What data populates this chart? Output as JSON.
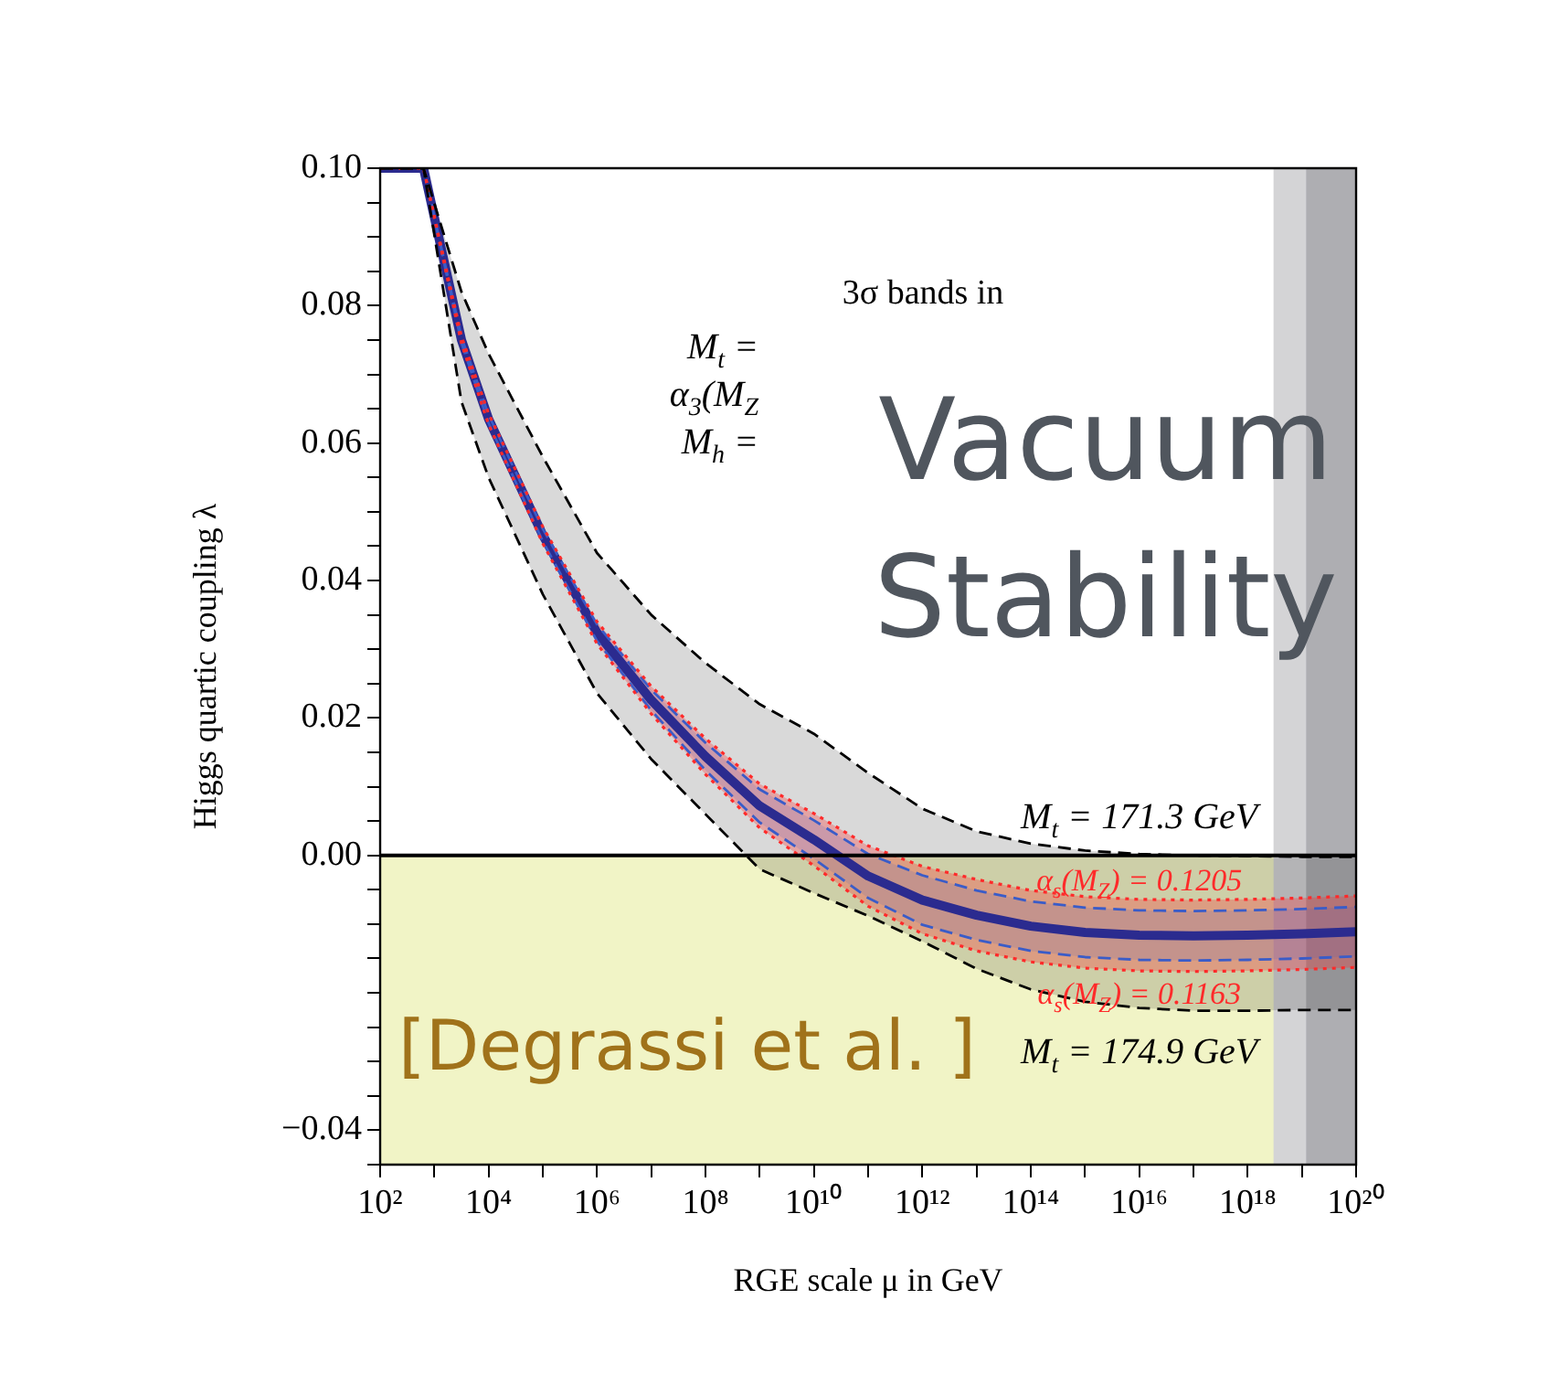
{
  "chart_data": {
    "type": "line",
    "xlabel": "RGE scale μ in GeV",
    "ylabel": "Higgs quartic coupling λ",
    "x": [
      100,
      631,
      3162,
      10000.0,
      100000.0,
      1000000.0,
      10000000.0,
      100000000.0,
      1000000000.0,
      10000000000.0,
      100000000000.0,
      1000000000000.0,
      10000000000000.0,
      100000000000000.0,
      1000000000000000.0,
      1e+16,
      1e+17,
      1e+18,
      1e+19,
      1e+20
    ],
    "series": [
      {
        "name": "M$_{t}$ = 171.3 GeV",
        "color": "#000000",
        "line_style": "dashed",
        "values": [
          0.1,
          0.1,
          0.082,
          0.073,
          0.058,
          0.044,
          0.035,
          0.028,
          0.022,
          0.0177,
          0.012,
          0.0068,
          0.0035,
          0.0017,
          0.0007,
          0.0002,
          0.0,
          -0.0001,
          -0.0002,
          -0.0002
        ]
      },
      {
        "name": "M$_{t}$ = 174.9 GeV",
        "color": "#000000",
        "line_style": "dashed",
        "values": [
          0.1,
          0.1,
          0.066,
          0.055,
          0.038,
          0.0236,
          0.014,
          0.006,
          -0.002,
          -0.0055,
          -0.0088,
          -0.0125,
          -0.0165,
          -0.0195,
          -0.0213,
          -0.0222,
          -0.0226,
          -0.0226,
          -0.0225,
          -0.0225
        ]
      },
      {
        "name": "α$_{s}$(M$_{Z}$) = 0.1205",
        "color": "#ff2a2a",
        "line_style": "dotted",
        "values": [
          0.1,
          0.1,
          0.0755,
          0.0643,
          0.0478,
          0.034,
          0.0246,
          0.017,
          0.0104,
          0.0061,
          0.0014,
          -0.0016,
          -0.0035,
          -0.0051,
          -0.006,
          -0.0064,
          -0.0065,
          -0.0064,
          -0.0062,
          -0.0059
        ]
      },
      {
        "name": "α$_{s}$(M$_{Z}$) = 0.1163",
        "color": "#ff2a2a",
        "line_style": "dotted",
        "values": [
          0.1,
          0.1,
          0.0745,
          0.0627,
          0.0454,
          0.0308,
          0.0206,
          0.0118,
          0.004,
          -0.0015,
          -0.0074,
          -0.0114,
          -0.0139,
          -0.0155,
          -0.0164,
          -0.0168,
          -0.0169,
          -0.0168,
          -0.0166,
          -0.0163
        ]
      },
      {
        "color": "#3a5cc8",
        "line_style": "dashed",
        "values": [
          0.1,
          0.1,
          0.0754,
          0.0641,
          0.0475,
          0.0336,
          0.0241,
          0.0164,
          0.0096,
          0.0051,
          0.0002,
          -0.0029,
          -0.0051,
          -0.0067,
          -0.0076,
          -0.008,
          -0.0081,
          -0.008,
          -0.0078,
          -0.0075
        ]
      },
      {
        "color": "#3a5cc8",
        "line_style": "dashed",
        "values": [
          0.1,
          0.1,
          0.0746,
          0.0629,
          0.0457,
          0.0312,
          0.0211,
          0.0124,
          0.0048,
          -0.0005,
          -0.0062,
          -0.0101,
          -0.0123,
          -0.0139,
          -0.0148,
          -0.0152,
          -0.0153,
          -0.0152,
          -0.015,
          -0.0147
        ]
      },
      {
        "color": "#2b2b8f",
        "line_style": "solid",
        "values": [
          0.1,
          0.1,
          0.075,
          0.0635,
          0.0466,
          0.0324,
          0.0226,
          0.0144,
          0.0072,
          0.0023,
          -0.003,
          -0.0065,
          -0.0087,
          -0.0103,
          -0.0112,
          -0.0116,
          -0.0117,
          -0.0116,
          -0.0114,
          -0.0111
        ]
      }
    ],
    "xlim": [
      100,
      1e+20
    ],
    "ylim": [
      -0.045,
      0.1
    ],
    "xticks": [
      {
        "value": 100,
        "label": "10²"
      },
      {
        "value": 1000,
        "label": null
      },
      {
        "value": 10000.0,
        "label": "10⁴"
      },
      {
        "value": 100000.0,
        "label": null
      },
      {
        "value": 1000000.0,
        "label": "10⁶"
      },
      {
        "value": 10000000.0,
        "label": null
      },
      {
        "value": 100000000.0,
        "label": "10⁸"
      },
      {
        "value": 1000000000.0,
        "label": null
      },
      {
        "value": 10000000000.0,
        "label": "10¹⁰"
      },
      {
        "value": 100000000000.0,
        "label": null
      },
      {
        "value": 1000000000000.0,
        "label": "10¹²"
      },
      {
        "value": 10000000000000.0,
        "label": null
      },
      {
        "value": 100000000000000.0,
        "label": "10¹⁴"
      },
      {
        "value": 1000000000000000.0,
        "label": null
      },
      {
        "value": 1e+16,
        "label": "10¹⁶"
      },
      {
        "value": 1e+17,
        "label": null
      },
      {
        "value": 1e+18,
        "label": "10¹⁸"
      },
      {
        "value": 1e+19,
        "label": null
      },
      {
        "value": 1e+20,
        "label": "10²⁰"
      }
    ],
    "yticks": [
      {
        "value": -0.045,
        "label": null
      },
      {
        "value": -0.04,
        "label": "−0.04"
      },
      {
        "value": -0.035,
        "label": null
      },
      {
        "value": -0.03,
        "label": null
      },
      {
        "value": -0.025,
        "label": null
      },
      {
        "value": -0.02,
        "label": null
      },
      {
        "value": -0.015,
        "label": null
      },
      {
        "value": -0.01,
        "label": null
      },
      {
        "value": -0.005,
        "label": null
      },
      {
        "value": 0,
        "label": "0.00"
      },
      {
        "value": 0.005,
        "label": null
      },
      {
        "value": 0.01,
        "label": null
      },
      {
        "value": 0.015,
        "label": null
      },
      {
        "value": 0.02,
        "label": "0.02"
      },
      {
        "value": 0.025,
        "label": null
      },
      {
        "value": 0.03,
        "label": null
      },
      {
        "value": 0.035,
        "label": null
      },
      {
        "value": 0.04,
        "label": "0.04"
      },
      {
        "value": 0.045,
        "label": null
      },
      {
        "value": 0.05,
        "label": null
      },
      {
        "value": 0.055,
        "label": null
      },
      {
        "value": 0.06,
        "label": "0.06"
      },
      {
        "value": 0.065,
        "label": null
      },
      {
        "value": 0.07,
        "label": null
      },
      {
        "value": 0.075,
        "label": null
      },
      {
        "value": 0.08,
        "label": "0.08"
      },
      {
        "value": 0.085,
        "label": null
      },
      {
        "value": 0.09,
        "label": null
      },
      {
        "value": 0.095,
        "label": null
      },
      {
        "value": 0.1,
        "label": "0.10"
      }
    ],
    "log": "x",
    "grid": false,
    "legend": false,
    "marker": "none",
    "bands": [
      {
        "axis": "y",
        "from": -0.045,
        "to": 0,
        "color": "#f1f4c6"
      },
      {
        "axis": "x",
        "from": 3e+18,
        "to": 1e+20,
        "color": "#d4d4d6"
      },
      {
        "axis": "x",
        "from": 1.2e+19,
        "to": 1e+20,
        "color": "#aeaeb2"
      }
    ],
    "ref_lines": [
      {
        "axis": "y",
        "value": 0,
        "color": "#000000"
      }
    ],
    "annotations": [
      "3σ bands in",
      "M$_{t}$ =",
      "α$_{3}$(M$_{Z}$",
      "M$_{h}$ =",
      "Vacuum Stability",
      "[Degrassi et al. ]"
    ]
  }
}
